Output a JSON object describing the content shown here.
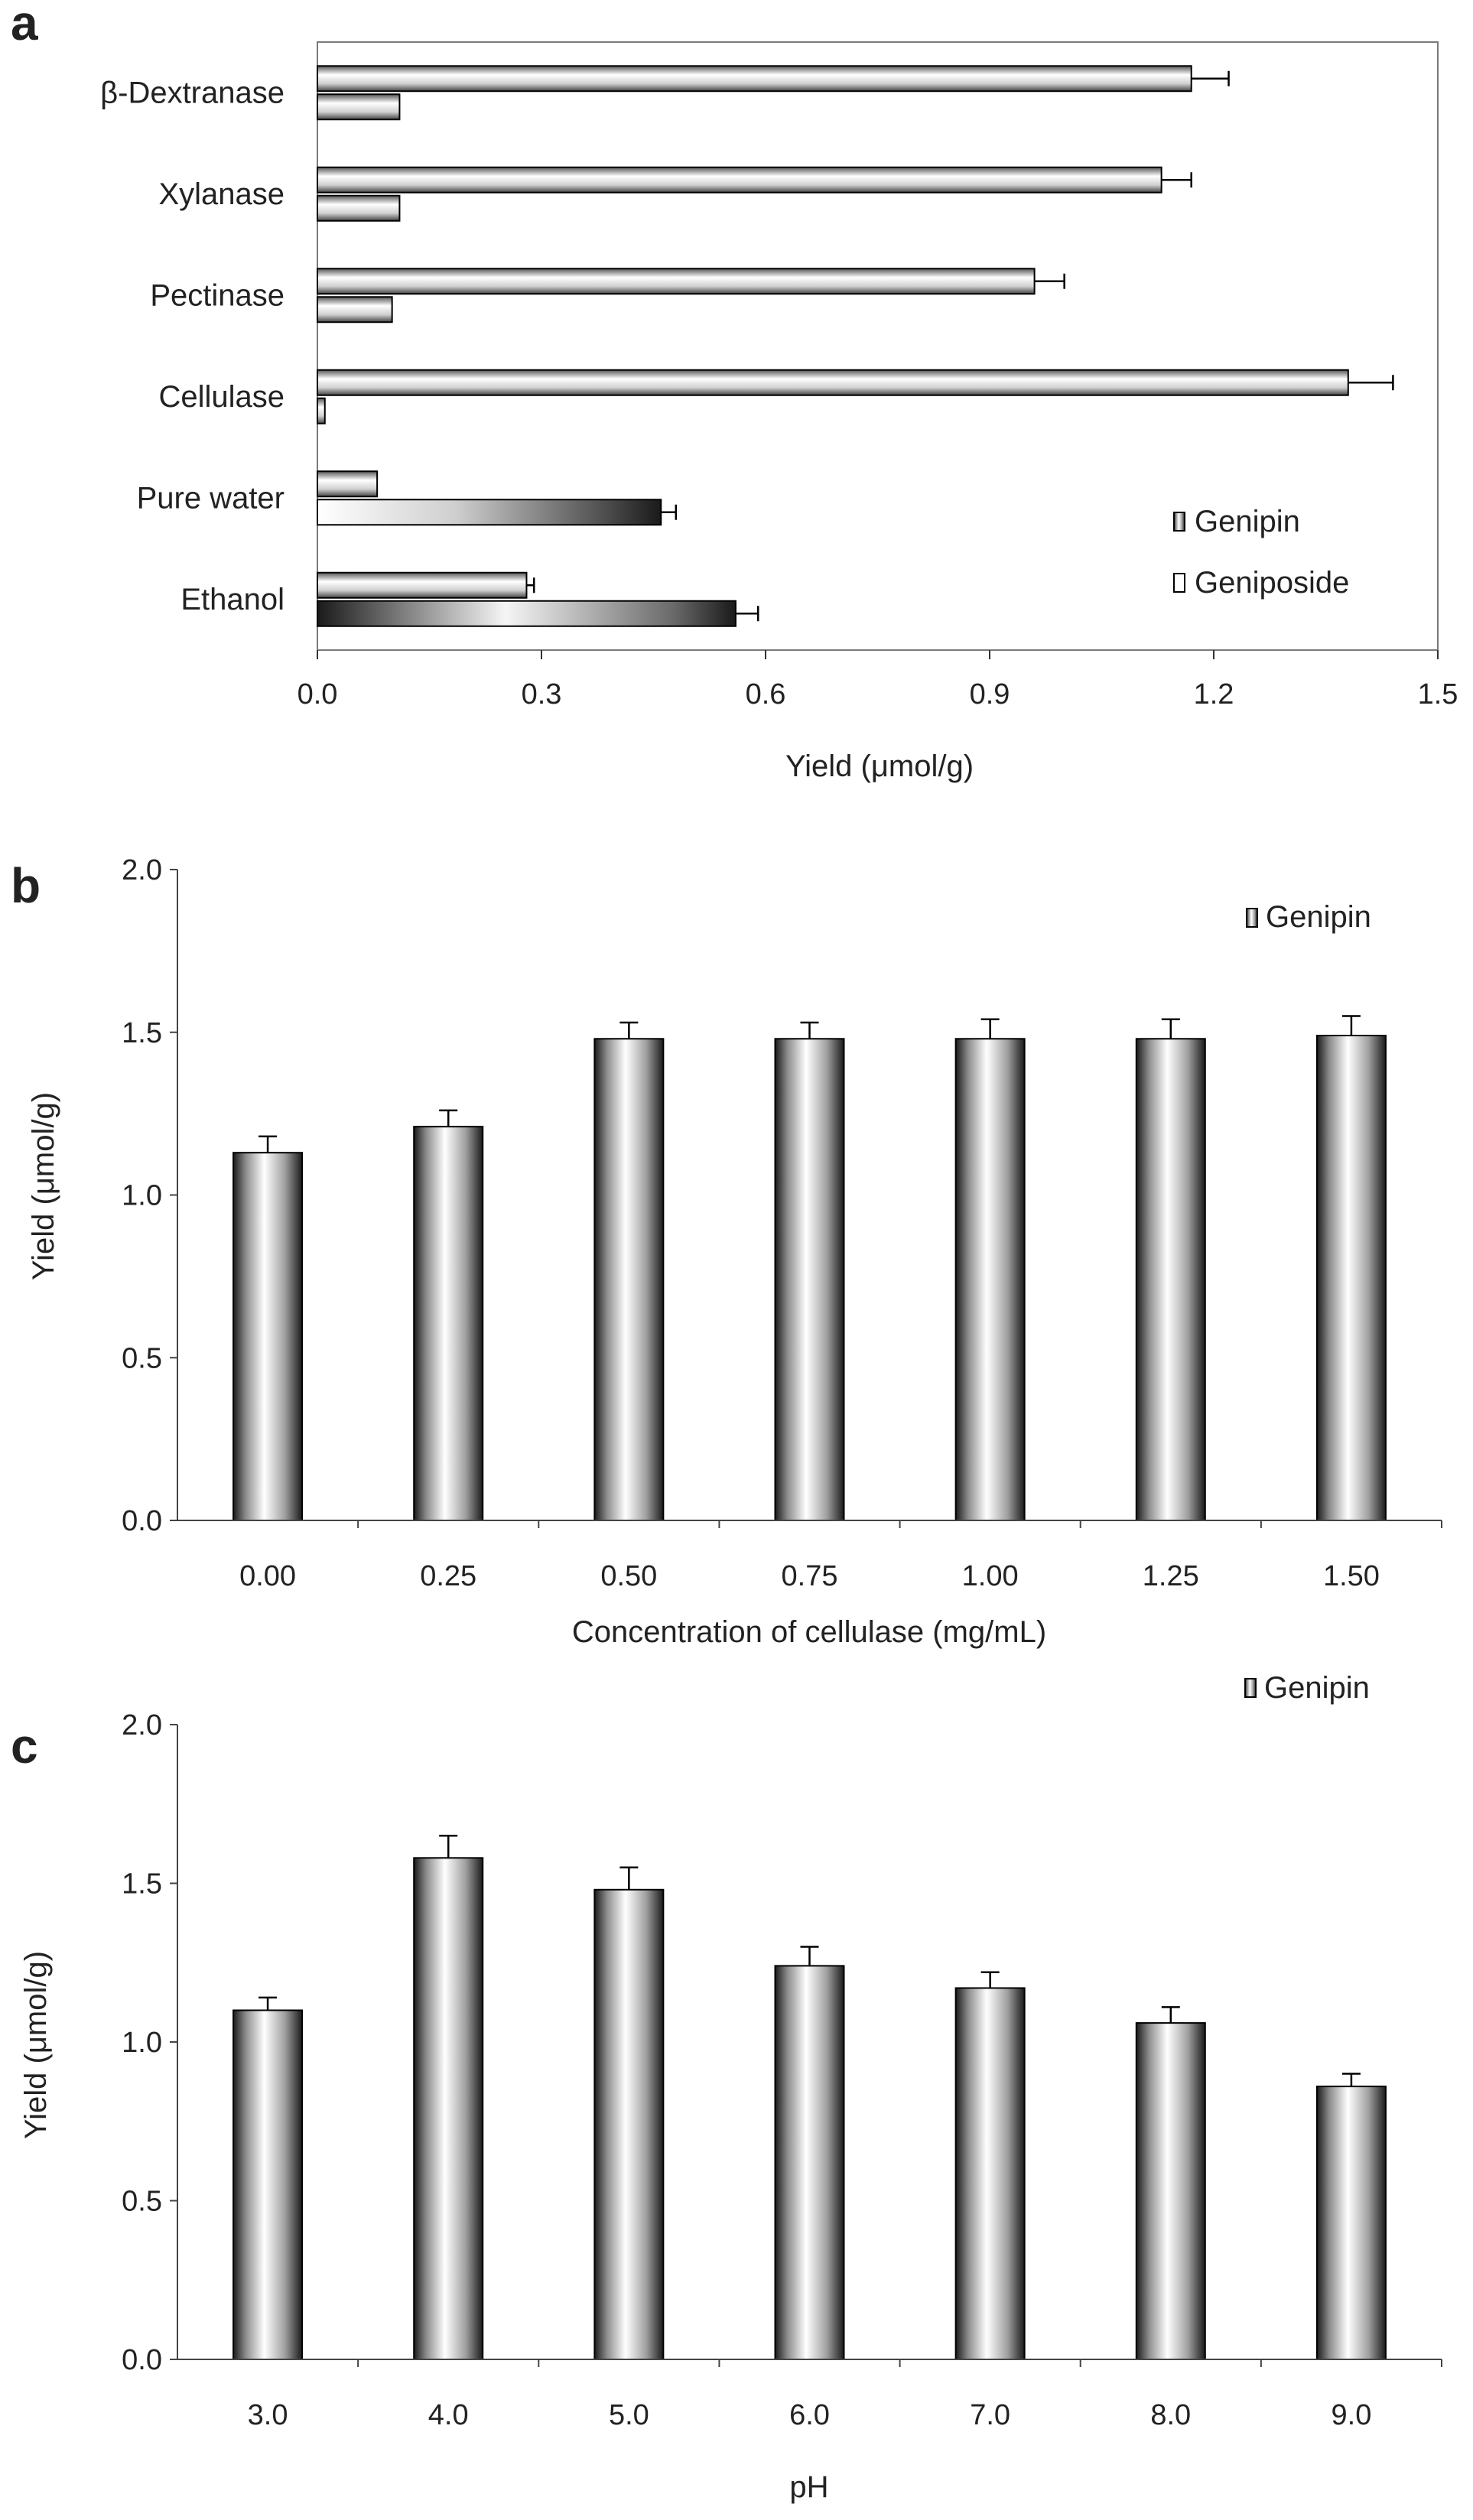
{
  "figure_panels": [
    "a",
    "b",
    "c"
  ],
  "chart_data": [
    {
      "panel": "a",
      "type": "bar",
      "orientation": "horizontal",
      "title": "",
      "categories": [
        "β-Dextranase",
        "Xylanase",
        "Pectinase",
        "Cellulase",
        "Pure water",
        "Ethanol"
      ],
      "series": [
        {
          "name": "Genipin",
          "values": [
            1.17,
            1.13,
            0.96,
            1.38,
            0.08,
            0.28
          ],
          "errors": [
            0.05,
            0.04,
            0.04,
            0.06,
            0.0,
            0.01
          ]
        },
        {
          "name": "Geniposide",
          "values": [
            0.11,
            0.11,
            0.1,
            0.01,
            0.46,
            0.56
          ],
          "errors": [
            0.0,
            0.0,
            0.0,
            0.0,
            0.02,
            0.03
          ]
        }
      ],
      "xlabel": "Yield (μmol/g)",
      "ylabel": "",
      "xlim": [
        0,
        1.5
      ],
      "xticks": [
        "0.0",
        "0.3",
        "0.6",
        "0.9",
        "1.2",
        "1.5"
      ],
      "legend_position": "bottom-right"
    },
    {
      "panel": "b",
      "type": "bar",
      "title": "",
      "categories": [
        "0.00",
        "0.25",
        "0.50",
        "0.75",
        "1.00",
        "1.25",
        "1.50"
      ],
      "series": [
        {
          "name": "Genipin",
          "values": [
            1.13,
            1.21,
            1.48,
            1.48,
            1.48,
            1.48,
            1.49
          ],
          "errors": [
            0.05,
            0.05,
            0.05,
            0.05,
            0.06,
            0.06,
            0.06
          ]
        }
      ],
      "xlabel": "Concentration of cellulase (mg/mL)",
      "ylabel": "Yield (μmol/g)",
      "ylim": [
        0,
        2.0
      ],
      "yticks": [
        "0.0",
        "0.5",
        "1.0",
        "1.5",
        "2.0"
      ],
      "legend_position": "top-right"
    },
    {
      "panel": "c",
      "type": "bar",
      "title": "",
      "categories": [
        "3.0",
        "4.0",
        "5.0",
        "6.0",
        "7.0",
        "8.0",
        "9.0"
      ],
      "series": [
        {
          "name": "Genipin",
          "values": [
            1.1,
            1.58,
            1.48,
            1.24,
            1.17,
            1.06,
            0.86
          ],
          "errors": [
            0.04,
            0.07,
            0.07,
            0.06,
            0.05,
            0.05,
            0.04
          ]
        }
      ],
      "xlabel": "pH",
      "ylabel": "Yield (μmol/g)",
      "ylim": [
        0,
        2.0
      ],
      "yticks": [
        "0.0",
        "0.5",
        "1.0",
        "1.5",
        "2.0"
      ],
      "legend_position": "top-right"
    }
  ]
}
